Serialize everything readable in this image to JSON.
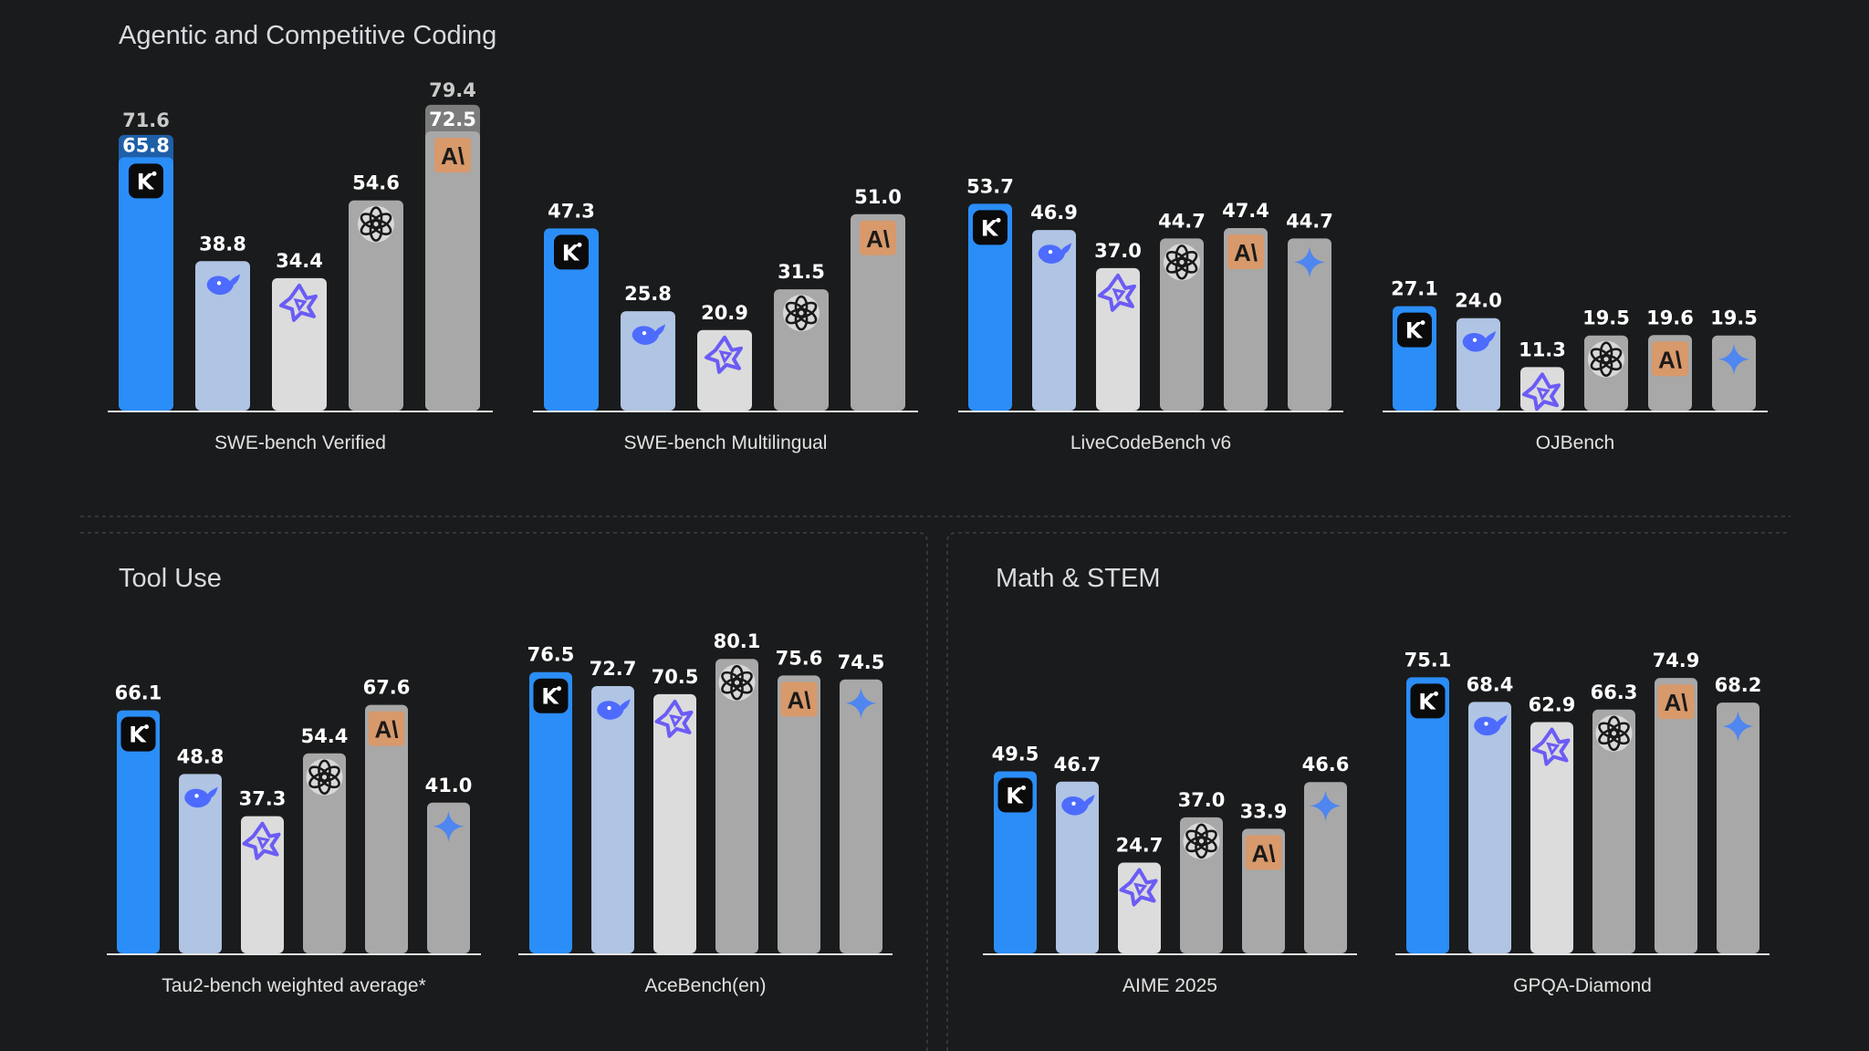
{
  "sections": [
    {
      "title": "Agentic and Competitive Coding"
    },
    {
      "title": "Tool Use"
    },
    {
      "title": "Math & STEM"
    }
  ],
  "legend_icons": {
    "kimi": "k-logo-icon",
    "deepseek": "whale-icon",
    "qwen": "qwen-star-icon",
    "openai": "openai-knot-icon",
    "anthropic": "anthropic-a-icon",
    "gemini": "gemini-sparkle-icon"
  },
  "colors": {
    "background": "#1a1b1c",
    "kimi": "#2b8df7",
    "deepseek": "#b0c4e3",
    "qwen": "#dcdcdc",
    "grey": "#a8a8a8",
    "anthropic_badge": "#d8996b",
    "kimi_badge_ext": "#1e5fa8",
    "grey_badge_ext": "#7c7c7c"
  },
  "chart_data": [
    {
      "type": "bar",
      "section": 0,
      "xlabel": "SWE-bench Verified",
      "models": [
        "kimi",
        "deepseek",
        "qwen",
        "openai",
        "anthropic"
      ],
      "values": [
        65.8,
        38.8,
        34.4,
        54.6,
        72.5
      ],
      "labels": [
        "65.8",
        "38.8",
        "34.4",
        "54.6",
        "72.5"
      ],
      "extended": [
        71.6,
        null,
        null,
        null,
        79.4
      ],
      "extended_labels": [
        "71.6",
        null,
        null,
        null,
        "79.4"
      ]
    },
    {
      "type": "bar",
      "section": 0,
      "xlabel": "SWE-bench Multilingual",
      "models": [
        "kimi",
        "deepseek",
        "qwen",
        "openai",
        "anthropic"
      ],
      "values": [
        47.3,
        25.8,
        20.9,
        31.5,
        51.0
      ],
      "labels": [
        "47.3",
        "25.8",
        "20.9",
        "31.5",
        "51.0"
      ]
    },
    {
      "type": "bar",
      "section": 0,
      "xlabel": "LiveCodeBench v6",
      "models": [
        "kimi",
        "deepseek",
        "qwen",
        "openai",
        "anthropic",
        "gemini"
      ],
      "values": [
        53.7,
        46.9,
        37.0,
        44.7,
        47.4,
        44.7
      ],
      "labels": [
        "53.7",
        "46.9",
        "37.0",
        "44.7",
        "47.4",
        "44.7"
      ]
    },
    {
      "type": "bar",
      "section": 0,
      "xlabel": "OJBench",
      "models": [
        "kimi",
        "deepseek",
        "qwen",
        "openai",
        "anthropic",
        "gemini"
      ],
      "values": [
        27.1,
        24.0,
        11.3,
        19.5,
        19.6,
        19.5
      ],
      "labels": [
        "27.1",
        "24.0",
        "11.3",
        "19.5",
        "19.6",
        "19.5"
      ]
    },
    {
      "type": "bar",
      "section": 1,
      "xlabel": "Tau2-bench weighted average*",
      "models": [
        "kimi",
        "deepseek",
        "qwen",
        "openai",
        "anthropic",
        "gemini"
      ],
      "values": [
        66.1,
        48.8,
        37.3,
        54.4,
        67.6,
        41.0
      ],
      "labels": [
        "66.1",
        "48.8",
        "37.3",
        "54.4",
        "67.6",
        "41.0"
      ]
    },
    {
      "type": "bar",
      "section": 1,
      "xlabel": "AceBench(en)",
      "models": [
        "kimi",
        "deepseek",
        "qwen",
        "openai",
        "anthropic",
        "gemini"
      ],
      "values": [
        76.5,
        72.7,
        70.5,
        80.1,
        75.6,
        74.5
      ],
      "labels": [
        "76.5",
        "72.7",
        "70.5",
        "80.1",
        "75.6",
        "74.5"
      ]
    },
    {
      "type": "bar",
      "section": 2,
      "xlabel": "AIME 2025",
      "models": [
        "kimi",
        "deepseek",
        "qwen",
        "openai",
        "anthropic",
        "gemini"
      ],
      "values": [
        49.5,
        46.7,
        24.7,
        37.0,
        33.9,
        46.6
      ],
      "labels": [
        "49.5",
        "46.7",
        "24.7",
        "37.0",
        "33.9",
        "46.6"
      ]
    },
    {
      "type": "bar",
      "section": 2,
      "xlabel": "GPQA-Diamond",
      "models": [
        "kimi",
        "deepseek",
        "qwen",
        "openai",
        "anthropic",
        "gemini"
      ],
      "values": [
        75.1,
        68.4,
        62.9,
        66.3,
        74.9,
        68.2
      ],
      "labels": [
        "75.1",
        "68.4",
        "62.9",
        "66.3",
        "74.9",
        "68.2"
      ]
    }
  ]
}
